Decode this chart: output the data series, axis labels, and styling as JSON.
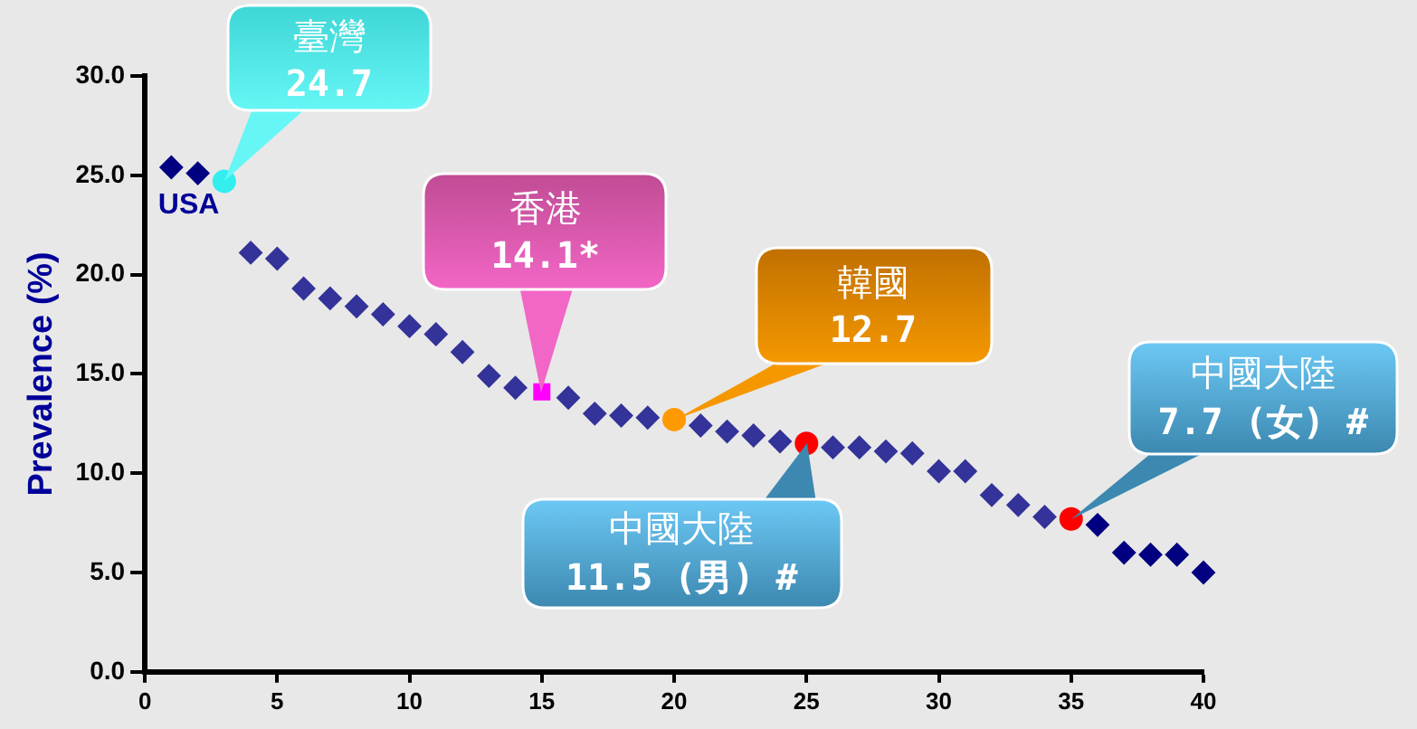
{
  "chart_data": {
    "type": "scatter",
    "ylabel": "Prevalence (%)",
    "xlim": [
      0,
      40
    ],
    "xticks": [
      0,
      5,
      10,
      15,
      20,
      25,
      30,
      35,
      40
    ],
    "ylim": [
      0,
      30
    ],
    "yticks": [
      {
        "value": 0,
        "label": "0.0"
      },
      {
        "value": 5,
        "label": "5.0"
      },
      {
        "value": 10,
        "label": "10.0"
      },
      {
        "value": 15,
        "label": "15.0"
      },
      {
        "value": 20,
        "label": "20.0"
      },
      {
        "value": 25,
        "label": "25.0"
      },
      {
        "value": 30,
        "label": "30.0"
      }
    ],
    "grid": false,
    "legend": false,
    "series": [
      {
        "marker": "diamond",
        "x": [
          1,
          2,
          4,
          5,
          6,
          7,
          8,
          9,
          10,
          11,
          12,
          13,
          14,
          16,
          17,
          18,
          19,
          21,
          22,
          23,
          24,
          26,
          27,
          28,
          29,
          30,
          31,
          32,
          33,
          34,
          36,
          37,
          38,
          39,
          40
        ],
        "values": [
          25.4,
          25.1,
          21.1,
          20.8,
          19.3,
          18.8,
          18.4,
          18.0,
          17.4,
          17.0,
          16.1,
          14.9,
          14.3,
          13.8,
          13.0,
          12.9,
          12.8,
          12.4,
          12.1,
          11.9,
          11.6,
          11.3,
          11.3,
          11.1,
          11.0,
          10.1,
          10.1,
          8.9,
          8.4,
          7.8,
          7.4,
          6.0,
          5.9,
          5.9,
          5.0
        ],
        "colors": [
          "#000080",
          "#000080",
          "#333399",
          "#333399",
          "#333399",
          "#333399",
          "#333399",
          "#333399",
          "#333399",
          "#333399",
          "#333399",
          "#333399",
          "#333399",
          "#333399",
          "#333399",
          "#333399",
          "#333399",
          "#333399",
          "#333399",
          "#333399",
          "#333399",
          "#333399",
          "#333399",
          "#333399",
          "#333399",
          "#333399",
          "#333399",
          "#333399",
          "#333399",
          "#333399",
          "#000080",
          "#000080",
          "#000080",
          "#000080",
          "#000080"
        ]
      },
      {
        "marker": "circle",
        "color": "#33eeee",
        "x": [
          3
        ],
        "values": [
          24.7
        ]
      },
      {
        "marker": "square",
        "color": "#ff00ff",
        "x": [
          15
        ],
        "values": [
          14.1
        ]
      },
      {
        "marker": "circle",
        "color": "#ff9900",
        "x": [
          20
        ],
        "values": [
          12.7
        ]
      },
      {
        "marker": "circle",
        "color": "#ff0000",
        "x": [
          25,
          35
        ],
        "values": [
          11.5,
          7.7
        ]
      }
    ],
    "annotations": [
      {
        "text": "USA",
        "x": 2,
        "y": 25.1
      },
      {
        "text": "臺灣\n24.7",
        "x": 3,
        "y": 24.7
      },
      "香港\n14.1*",
      {
        "text": "韓國\n12.7",
        "x": 20,
        "y": 12.7
      },
      {
        "text": "中國大陸\n11.5 (男) #",
        "x": 25,
        "y": 11.5
      },
      "中國大陸\n7.7 (女) #"
    ]
  }
}
